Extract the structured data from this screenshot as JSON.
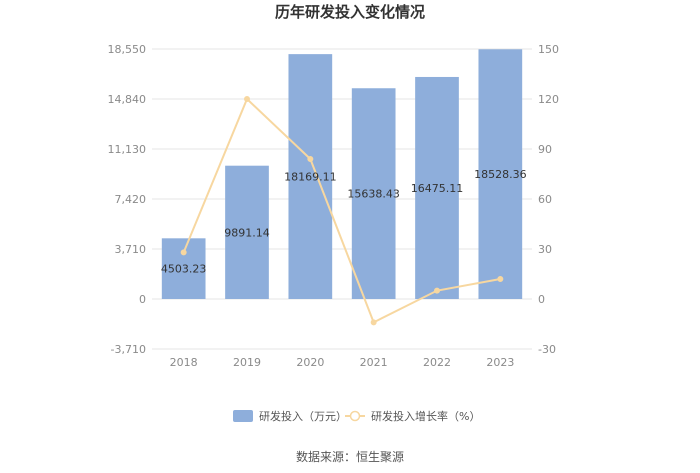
{
  "chart_data": {
    "type": "bar",
    "title": "历年研发投入变化情况",
    "categories": [
      "2018",
      "2019",
      "2020",
      "2021",
      "2022",
      "2023"
    ],
    "series": [
      {
        "name": "研发投入（万元）",
        "type": "bar",
        "axis": "left",
        "color": "#8eaedb",
        "values": [
          4503.23,
          9891.14,
          18169.11,
          15638.43,
          16475.11,
          18528.36
        ],
        "labels": [
          "4503.23",
          "9891.14",
          "18169.11",
          "15638.43",
          "16475.11",
          "18528.36"
        ]
      },
      {
        "name": "研发投入增长率（%）",
        "type": "line",
        "axis": "right",
        "color": "#f7d7a0",
        "values": [
          28,
          120,
          84,
          -14,
          5,
          12
        ]
      }
    ],
    "left_axis": {
      "ylim": [
        -3710,
        18550
      ],
      "ticks": [
        -3710,
        0,
        3710,
        7420,
        11130,
        14840,
        18550
      ],
      "tick_labels": [
        "-3,710",
        "0",
        "3,710",
        "7,420",
        "11,130",
        "14,840",
        "18,550"
      ]
    },
    "right_axis": {
      "ylim": [
        -30,
        150
      ],
      "ticks": [
        -30,
        0,
        30,
        60,
        90,
        120,
        150
      ],
      "tick_labels": [
        "-30",
        "0",
        "30",
        "60",
        "90",
        "120",
        "150"
      ]
    },
    "grid": true,
    "legend_position": "bottom"
  },
  "source_text": "数据来源：恒生聚源"
}
